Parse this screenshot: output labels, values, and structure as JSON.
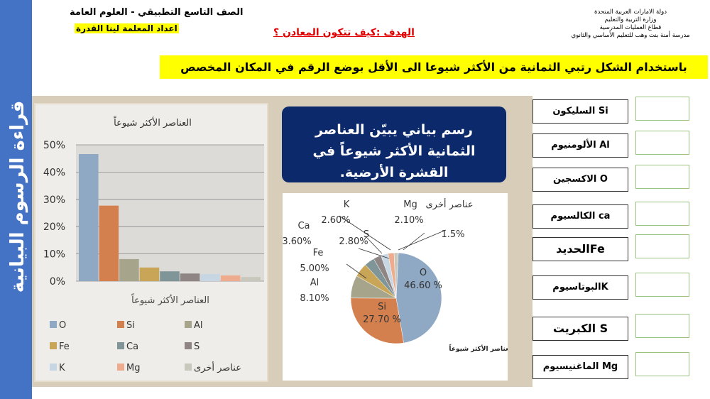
{
  "side_title": "قراءة الرسوم البيانية",
  "header": {
    "org_lines": [
      "دولة الامارات العربية المتحدة",
      "وزارة التربية والتعليم",
      "قطاع العمليات المدرسية",
      "مدرسة أمنة بنت وهب للتعليم الأساسي والثانوي"
    ],
    "course": "الصف التاسع التطبيقي  - العلوم العامة",
    "teacher": "اعداد المعلمة لينا القدرة",
    "goal": "الهدف :كيف تتكون المعادن ؟"
  },
  "instruction": "باستخدام الشكل رتبي   الثمانية  من الأكثر شيوعا الى الأقل  بوضع الرقم في المكان المخصص",
  "caption_box": "رسم بياني يبيّن العناصر الثمانية الأكثر شيوعاً في القشرة الأرضية.",
  "chart_data": [
    {
      "type": "bar",
      "title": "العناصر الأكثر شيوعاً",
      "xlabel": "العناصر الأكثر شيوعاً",
      "ylabel": "",
      "ylim": [
        0,
        50
      ],
      "yticks": [
        "0%",
        "10%",
        "20%",
        "30%",
        "40%",
        "50%"
      ],
      "grid": true,
      "legend": "bottom",
      "categories": [
        "O",
        "Si",
        "Al",
        "Fe",
        "Ca",
        "S",
        "K",
        "Mg",
        "عناصر أخرى"
      ],
      "values": [
        46.6,
        27.7,
        8.1,
        5.0,
        3.6,
        2.8,
        2.6,
        2.1,
        1.5
      ],
      "colors": [
        "#8fa8c4",
        "#d4804e",
        "#a6a58c",
        "#c9a657",
        "#7f9598",
        "#8e8584",
        "#c7d6e3",
        "#eeab8e",
        "#c8c8bd"
      ]
    },
    {
      "type": "pie",
      "title": "العناصر الأكثر شيوعاً",
      "categories": [
        "O",
        "Si",
        "Al",
        "Fe",
        "Ca",
        "S",
        "K",
        "Mg",
        "عناصر أخرى"
      ],
      "values": [
        46.6,
        27.7,
        8.1,
        5.0,
        3.6,
        2.8,
        2.6,
        2.1,
        1.5
      ],
      "labels": [
        "46.60 %",
        "27.70 %",
        "8.10%",
        "5.00%",
        "3.60%",
        "2.80%",
        "2.60%",
        "2.10%",
        "1.5%"
      ]
    }
  ],
  "elements": [
    "Si السليكون",
    "Al الألومنيوم",
    "O الاكسجين",
    "ca الكالسيوم",
    "Feالحديد",
    "Kالبوتاسيوم",
    "S الكبريت",
    "Mg الماغنيسيوم"
  ],
  "answers": [
    "",
    "",
    "",
    "",
    "",
    "",
    "",
    ""
  ]
}
